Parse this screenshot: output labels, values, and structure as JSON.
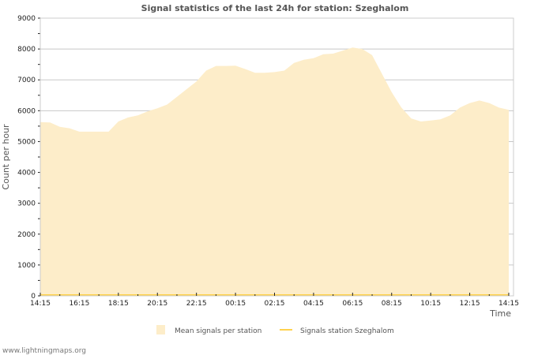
{
  "chart_data": {
    "type": "area",
    "title": "Signal statistics of the last 24h for station: Szeghalom",
    "xlabel": "Time",
    "ylabel": "Count per hour",
    "ylim": [
      0,
      9000
    ],
    "yticks": [
      "0",
      "1000",
      "2000",
      "3000",
      "4000",
      "5000",
      "6000",
      "7000",
      "8000",
      "9000"
    ],
    "xticks": [
      "14:15",
      "16:15",
      "18:15",
      "20:15",
      "22:15",
      "00:15",
      "02:15",
      "04:15",
      "06:15",
      "08:15",
      "10:15",
      "12:15",
      "14:15"
    ],
    "x_hours_from_start_step": 0.5,
    "grid": true,
    "legend_position": "bottom",
    "series": [
      {
        "name": "Mean signals per station",
        "kind": "area",
        "color": "#fdedc9",
        "values": [
          5630,
          5620,
          5480,
          5430,
          5320,
          5320,
          5320,
          5320,
          5650,
          5780,
          5850,
          5980,
          6080,
          6200,
          6450,
          6700,
          6950,
          7300,
          7450,
          7450,
          7460,
          7350,
          7230,
          7230,
          7250,
          7300,
          7550,
          7650,
          7700,
          7830,
          7850,
          7950,
          8050,
          8000,
          7800,
          7200,
          6600,
          6100,
          5750,
          5650,
          5680,
          5720,
          5850,
          6100,
          6250,
          6330,
          6250,
          6100,
          6030
        ]
      },
      {
        "name": "Signals station Szeghalom",
        "kind": "line",
        "color": "#ffd24d",
        "values": [
          0,
          0,
          0,
          0,
          0,
          0,
          0,
          0,
          0,
          0,
          0,
          0,
          0,
          0,
          0,
          0,
          0,
          0,
          0,
          0,
          0,
          0,
          0,
          0,
          0,
          0,
          0,
          0,
          0,
          0,
          0,
          0,
          0,
          0,
          0,
          0,
          0,
          0,
          0,
          0,
          0,
          0,
          0,
          0,
          0,
          0,
          0,
          0,
          0
        ]
      }
    ]
  },
  "watermark": "www.lightningmaps.org"
}
